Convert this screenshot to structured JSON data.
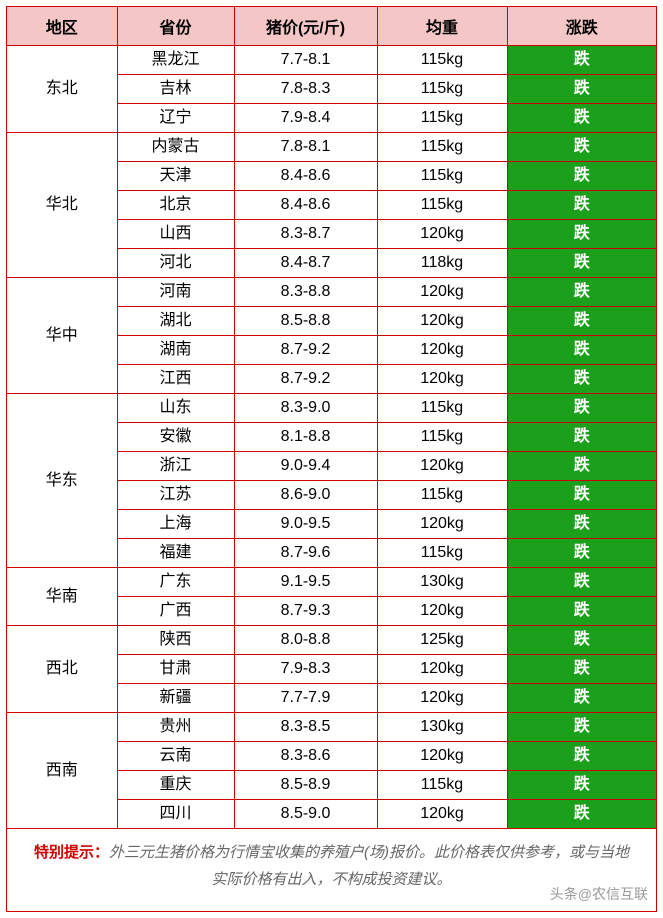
{
  "header": {
    "region": "地区",
    "province": "省份",
    "price": "猪价(元/斤)",
    "weight": "均重",
    "trend": "涨跌"
  },
  "trend_label": {
    "down": "跌",
    "up": "涨"
  },
  "trend_color": {
    "down_bg": "#1aa01a",
    "up_bg": "#d00000",
    "text": "#ffffff"
  },
  "table_colors": {
    "header_bg": "#f5c6c6",
    "border": "#d00000",
    "background": "#ffffff"
  },
  "fonts": {
    "body_size_pt": 12,
    "header_weight": "bold",
    "trend_weight": "bold"
  },
  "regions": [
    {
      "name": "东北",
      "rows": [
        {
          "province": "黑龙江",
          "price": "7.7-8.1",
          "weight": "115kg",
          "trend": "down"
        },
        {
          "province": "吉林",
          "price": "7.8-8.3",
          "weight": "115kg",
          "trend": "down"
        },
        {
          "province": "辽宁",
          "price": "7.9-8.4",
          "weight": "115kg",
          "trend": "down"
        }
      ]
    },
    {
      "name": "华北",
      "rows": [
        {
          "province": "内蒙古",
          "price": "7.8-8.1",
          "weight": "115kg",
          "trend": "down"
        },
        {
          "province": "天津",
          "price": "8.4-8.6",
          "weight": "115kg",
          "trend": "down"
        },
        {
          "province": "北京",
          "price": "8.4-8.6",
          "weight": "115kg",
          "trend": "down"
        },
        {
          "province": "山西",
          "price": "8.3-8.7",
          "weight": "120kg",
          "trend": "down"
        },
        {
          "province": "河北",
          "price": "8.4-8.7",
          "weight": "118kg",
          "trend": "down"
        }
      ]
    },
    {
      "name": "华中",
      "rows": [
        {
          "province": "河南",
          "price": "8.3-8.8",
          "weight": "120kg",
          "trend": "down"
        },
        {
          "province": "湖北",
          "price": "8.5-8.8",
          "weight": "120kg",
          "trend": "down"
        },
        {
          "province": "湖南",
          "price": "8.7-9.2",
          "weight": "120kg",
          "trend": "down"
        },
        {
          "province": "江西",
          "price": "8.7-9.2",
          "weight": "120kg",
          "trend": "down"
        }
      ]
    },
    {
      "name": "华东",
      "rows": [
        {
          "province": "山东",
          "price": "8.3-9.0",
          "weight": "115kg",
          "trend": "down"
        },
        {
          "province": "安徽",
          "price": "8.1-8.8",
          "weight": "115kg",
          "trend": "down"
        },
        {
          "province": "浙江",
          "price": "9.0-9.4",
          "weight": "120kg",
          "trend": "down"
        },
        {
          "province": "江苏",
          "price": "8.6-9.0",
          "weight": "115kg",
          "trend": "down"
        },
        {
          "province": "上海",
          "price": "9.0-9.5",
          "weight": "120kg",
          "trend": "down"
        },
        {
          "province": "福建",
          "price": "8.7-9.6",
          "weight": "115kg",
          "trend": "down"
        }
      ]
    },
    {
      "name": "华南",
      "rows": [
        {
          "province": "广东",
          "price": "9.1-9.5",
          "weight": "130kg",
          "trend": "down"
        },
        {
          "province": "广西",
          "price": "8.7-9.3",
          "weight": "120kg",
          "trend": "down"
        }
      ]
    },
    {
      "name": "西北",
      "rows": [
        {
          "province": "陕西",
          "price": "8.0-8.8",
          "weight": "125kg",
          "trend": "down"
        },
        {
          "province": "甘肃",
          "price": "7.9-8.3",
          "weight": "120kg",
          "trend": "down"
        },
        {
          "province": "新疆",
          "price": "7.7-7.9",
          "weight": "120kg",
          "trend": "down"
        }
      ]
    },
    {
      "name": "西南",
      "rows": [
        {
          "province": "贵州",
          "price": "8.3-8.5",
          "weight": "130kg",
          "trend": "down"
        },
        {
          "province": "云南",
          "price": "8.3-8.6",
          "weight": "120kg",
          "trend": "down"
        },
        {
          "province": "重庆",
          "price": "8.5-8.9",
          "weight": "115kg",
          "trend": "down"
        },
        {
          "province": "四川",
          "price": "8.5-9.0",
          "weight": "120kg",
          "trend": "down"
        }
      ]
    }
  ],
  "footnote": {
    "label": "特别提示：",
    "text_1": "外三元生猪价格为行情宝收集的养殖户(场)报价。此价格表仅供参考，或与当地",
    "text_2": "实际价格有出入，不构成投资建议。",
    "watermark": "头条@农信互联"
  }
}
